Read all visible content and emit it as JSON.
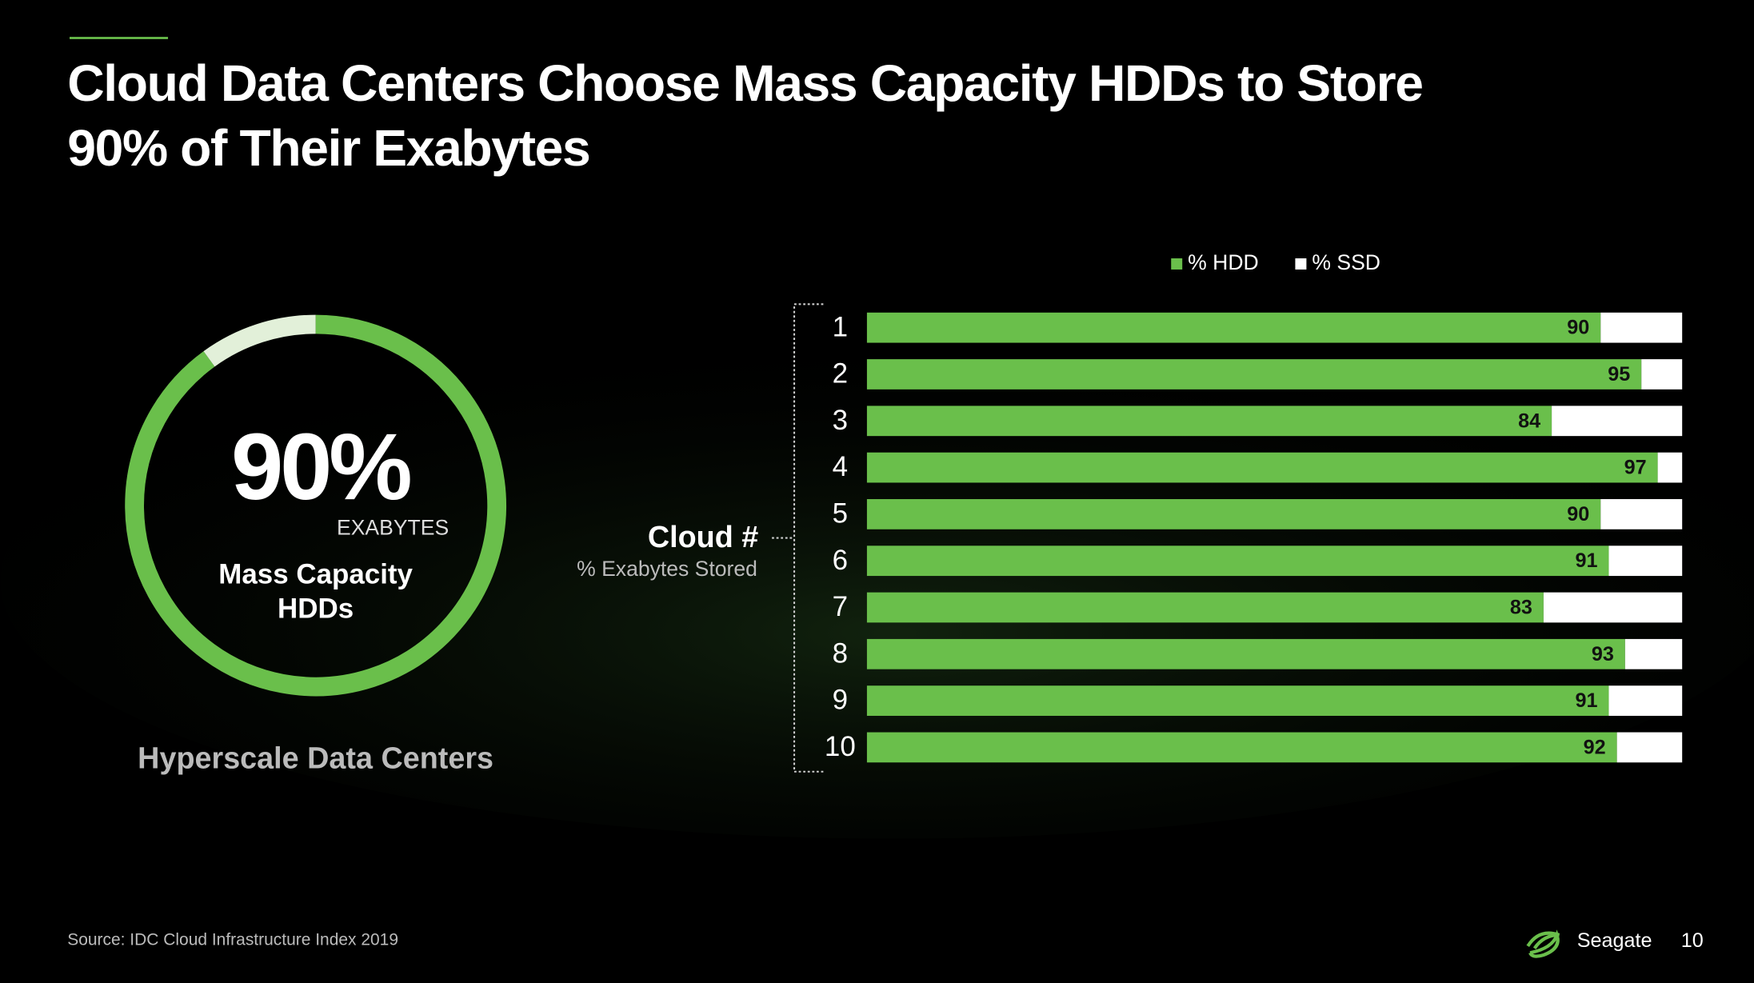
{
  "header": {
    "title": [
      "Cloud Data Centers Choose Mass Capacity HDDs to Store",
      "90% of Their Exabytes"
    ]
  },
  "chart_data": [
    {
      "type": "donut",
      "values": [
        90,
        10
      ],
      "value_labels": [
        "90%",
        null
      ],
      "colors": [
        "#6abf4b",
        "#e2f0d9"
      ],
      "unit_label": "EXABYTES",
      "label": [
        "Mass Capacity",
        "HDDs"
      ],
      "caption": "Hyperscale Data Centers"
    },
    {
      "type": "stacked_bar",
      "orientation": "horizontal",
      "y_label": "Cloud #",
      "y_sublabel": "% Exabytes Stored",
      "categories": [
        "1",
        "2",
        "3",
        "4",
        "5",
        "6",
        "7",
        "8",
        "9",
        "10"
      ],
      "series": [
        {
          "name": "% HDD",
          "color": "#6abf4b",
          "labels": true,
          "values": [
            90,
            95,
            84,
            97,
            90,
            91,
            83,
            93,
            91,
            92
          ]
        },
        {
          "name": "% SSD",
          "color": "#ffffff",
          "labels": false,
          "values": [
            10,
            5,
            16,
            3,
            10,
            9,
            17,
            7,
            9,
            8
          ]
        }
      ],
      "xlim": [
        0,
        100
      ],
      "legend": "top"
    }
  ],
  "footer": {
    "source": "Source: IDC Cloud Infrastructure Index 2019",
    "brand": "Seagate",
    "page": "10"
  }
}
